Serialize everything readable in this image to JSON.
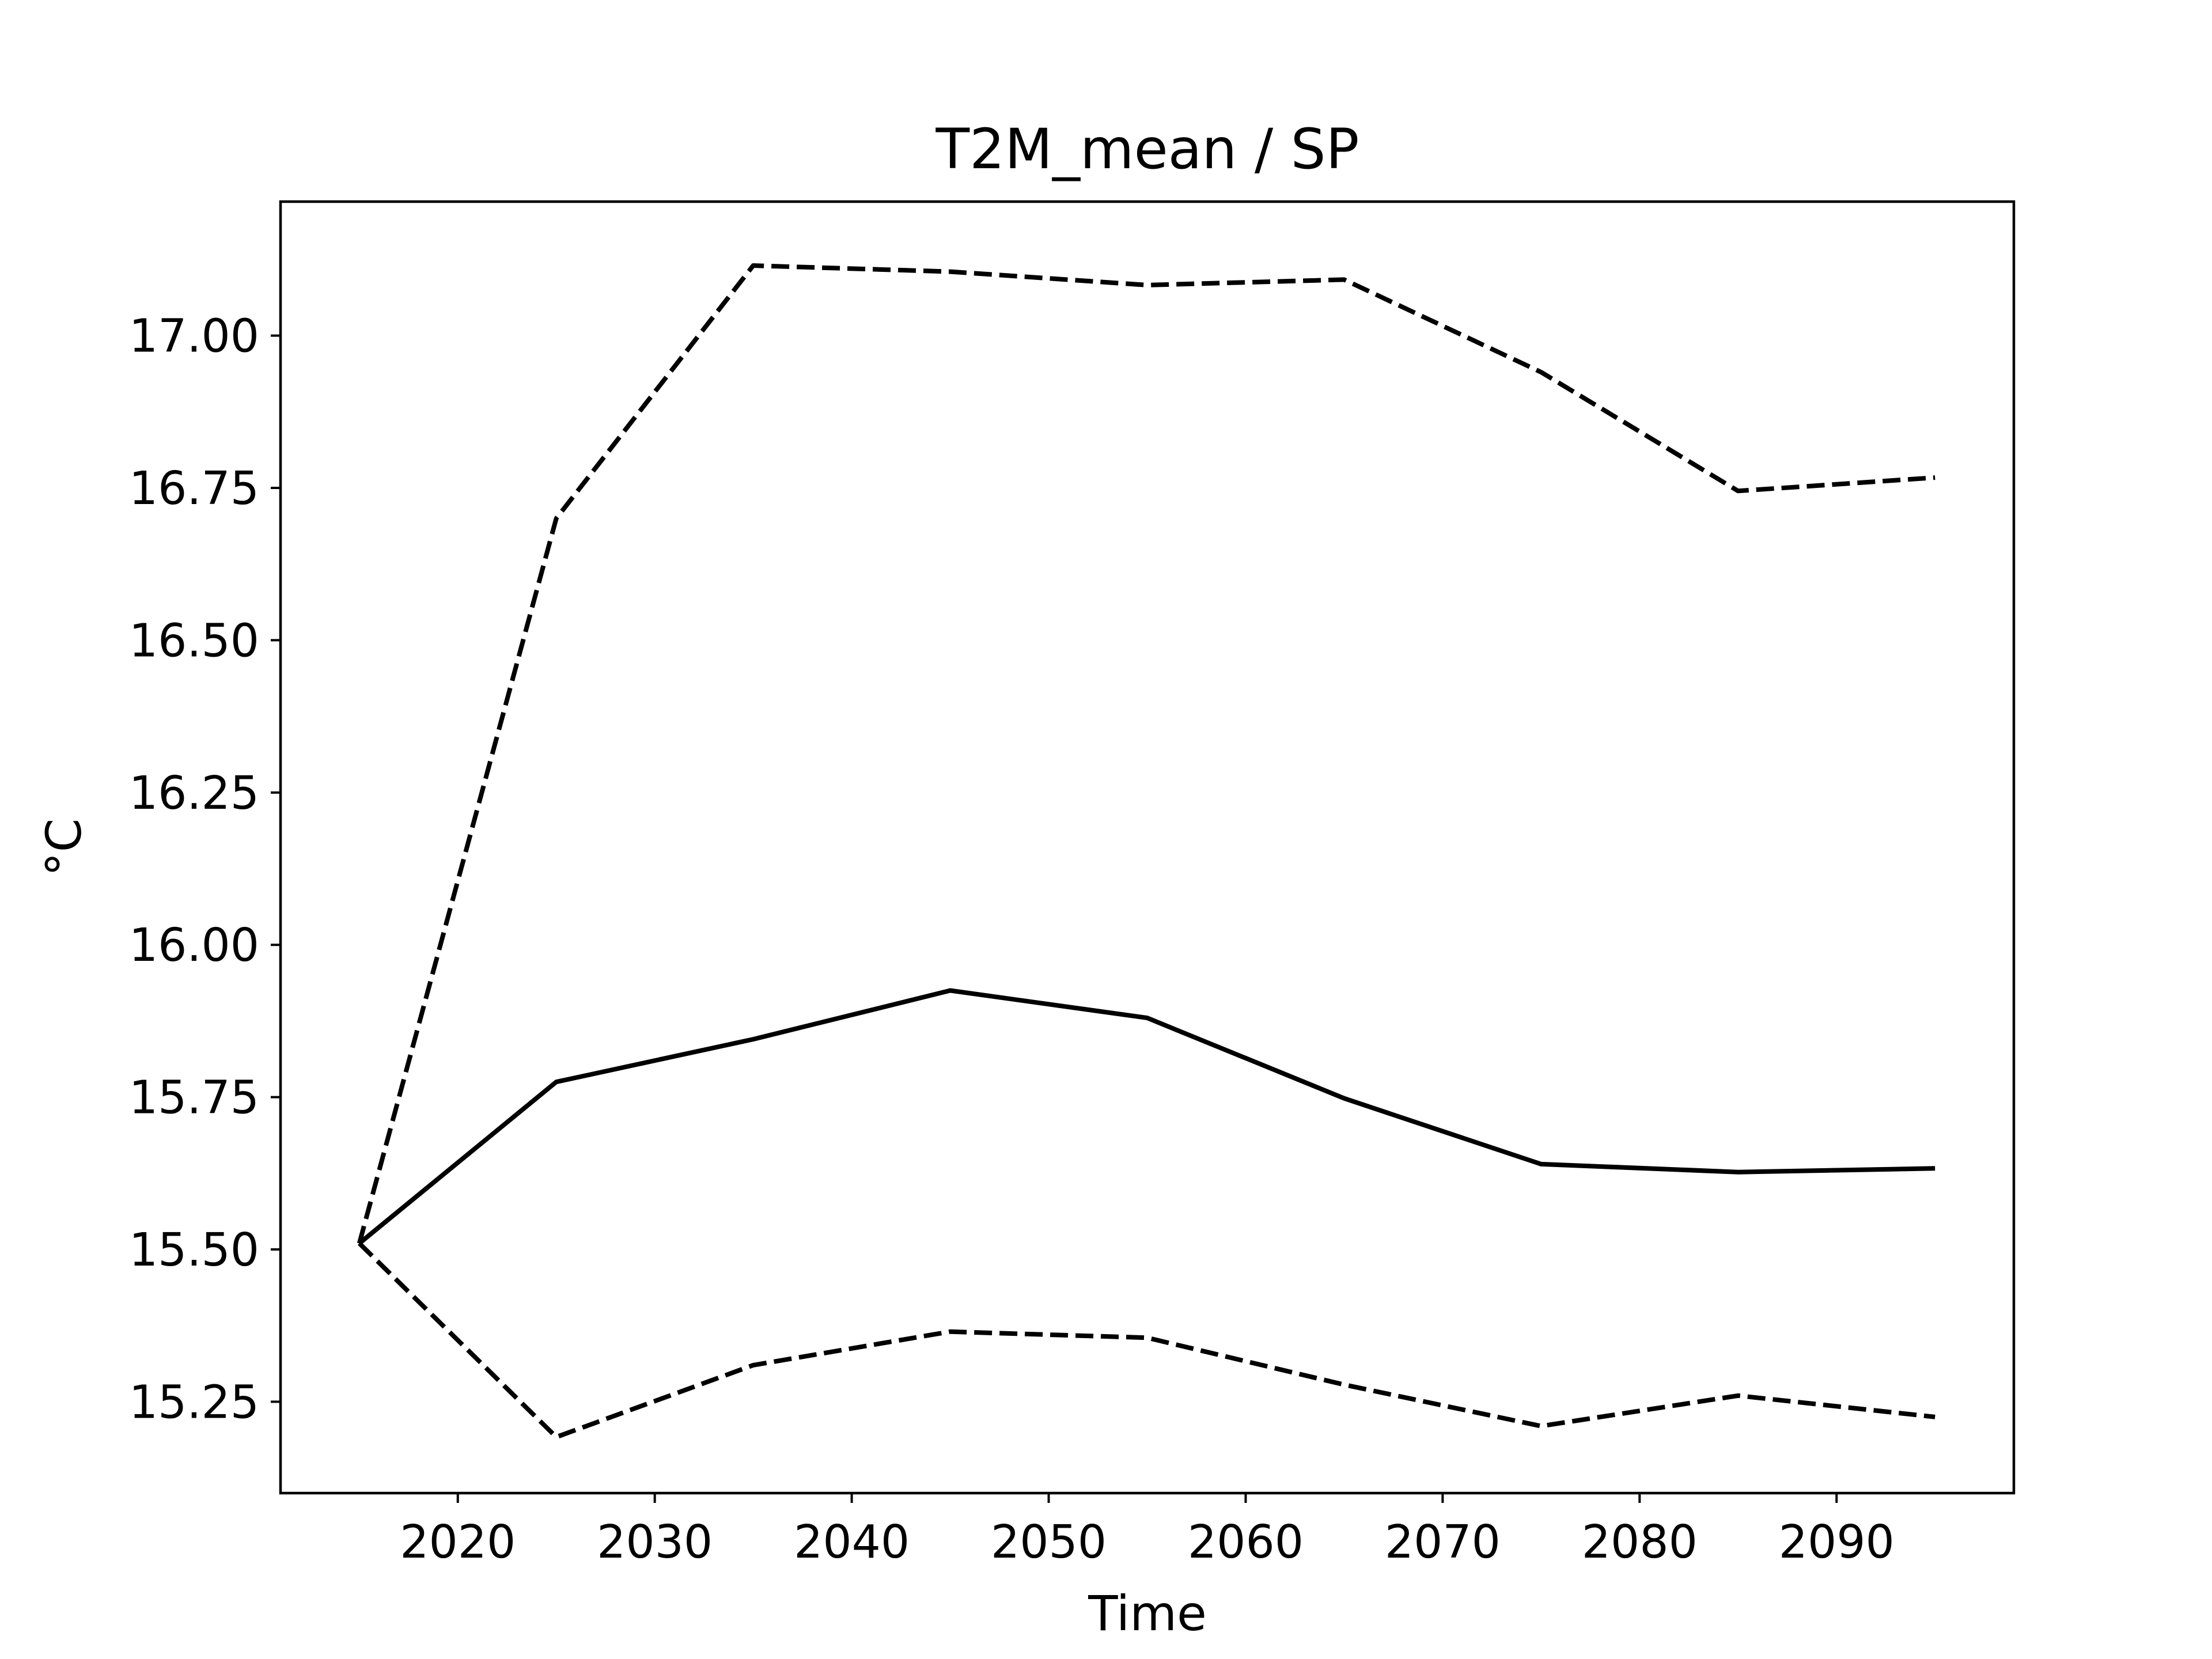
{
  "chart_data": {
    "type": "line",
    "title": "T2M_mean / SP",
    "xlabel": "Time",
    "ylabel": "°C",
    "xlim": [
      2011,
      2099
    ],
    "ylim": [
      15.1,
      17.22
    ],
    "xticks": [
      2020,
      2030,
      2040,
      2050,
      2060,
      2070,
      2080,
      2090
    ],
    "yticks": [
      15.25,
      15.5,
      15.75,
      16.0,
      16.25,
      16.5,
      16.75,
      17.0
    ],
    "ytick_labels": [
      "15.25",
      "15.50",
      "15.75",
      "16.00",
      "16.25",
      "16.50",
      "16.75",
      "17.00"
    ],
    "grid": false,
    "x": [
      2015,
      2025,
      2035,
      2045,
      2055,
      2065,
      2075,
      2085,
      2095
    ],
    "series": [
      {
        "style": "solid",
        "color": "#000000",
        "values": [
          15.51,
          15.775,
          15.845,
          15.925,
          15.88,
          15.748,
          15.64,
          15.627,
          15.633
        ]
      },
      {
        "style": "dashed",
        "color": "#000000",
        "values": [
          15.51,
          16.7,
          17.115,
          17.105,
          17.083,
          17.092,
          16.94,
          16.745,
          16.767
        ]
      },
      {
        "style": "dashed",
        "color": "#000000",
        "values": [
          15.51,
          15.192,
          15.31,
          15.365,
          15.355,
          15.278,
          15.21,
          15.26,
          15.225
        ]
      }
    ]
  }
}
